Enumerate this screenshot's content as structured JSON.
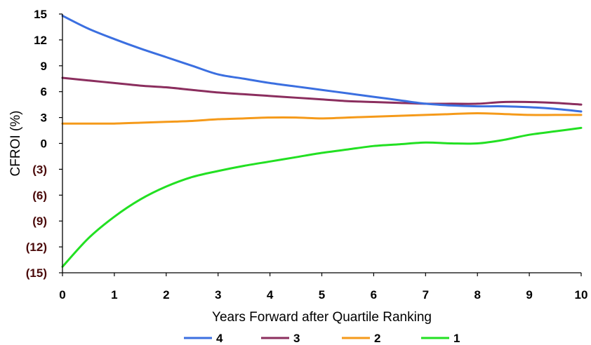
{
  "chart_data": {
    "type": "line",
    "xlabel": "Years Forward after Quartile Ranking",
    "ylabel": "CFROI (%)",
    "xlim": [
      0,
      10
    ],
    "ylim": [
      -15,
      15
    ],
    "x_ticks": [
      0,
      1,
      2,
      3,
      4,
      5,
      6,
      7,
      8,
      9,
      10
    ],
    "x_tick_labels": [
      "0",
      "1",
      "2",
      "3",
      "4",
      "5",
      "6",
      "7",
      "8",
      "9",
      "10"
    ],
    "y_ticks": [
      15,
      12,
      9,
      6,
      3,
      0,
      -3,
      -6,
      -9,
      -12,
      -15
    ],
    "y_tick_labels": [
      "15",
      "12",
      "9",
      "6",
      "3",
      "0",
      "(3)",
      "(6)",
      "(9)",
      "(12)",
      "(15)"
    ],
    "negative_label_color": "#4a0a0a",
    "positive_label_color": "#000000",
    "grid": false,
    "legend_position": "bottom",
    "x": [
      0,
      0.5,
      1,
      1.5,
      2,
      2.5,
      3,
      3.5,
      4,
      4.5,
      5,
      5.5,
      6,
      6.5,
      7,
      7.5,
      8,
      8.5,
      9,
      9.5,
      10
    ],
    "series": [
      {
        "name": "4",
        "color": "#3b6fe0",
        "values": [
          14.8,
          13.3,
          12.1,
          11.0,
          10.0,
          9.0,
          8.0,
          7.5,
          7.0,
          6.6,
          6.2,
          5.8,
          5.4,
          5.0,
          4.6,
          4.4,
          4.3,
          4.3,
          4.2,
          4.0,
          3.7
        ]
      },
      {
        "name": "3",
        "color": "#8b2e5e",
        "values": [
          7.6,
          7.3,
          7.0,
          6.7,
          6.5,
          6.2,
          5.9,
          5.7,
          5.5,
          5.3,
          5.1,
          4.9,
          4.8,
          4.7,
          4.6,
          4.6,
          4.6,
          4.8,
          4.8,
          4.7,
          4.5
        ]
      },
      {
        "name": "2",
        "color": "#f59a1a",
        "values": [
          2.3,
          2.3,
          2.3,
          2.4,
          2.5,
          2.6,
          2.8,
          2.9,
          3.0,
          3.0,
          2.9,
          3.0,
          3.1,
          3.2,
          3.3,
          3.4,
          3.5,
          3.4,
          3.3,
          3.3,
          3.3
        ]
      },
      {
        "name": "1",
        "color": "#22e022",
        "values": [
          -14.3,
          -11.0,
          -8.5,
          -6.5,
          -5.0,
          -3.9,
          -3.2,
          -2.6,
          -2.1,
          -1.6,
          -1.1,
          -0.7,
          -0.3,
          -0.1,
          0.1,
          0.0,
          0.0,
          0.4,
          1.0,
          1.4,
          1.8
        ]
      }
    ]
  }
}
